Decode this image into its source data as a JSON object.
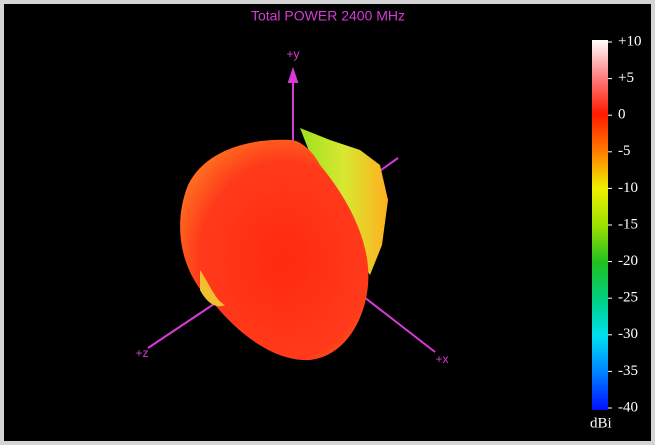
{
  "title": "Total POWER 2400  MHz",
  "axes": {
    "y": "+y",
    "x": "+x",
    "z": "+z"
  },
  "colorbar": {
    "unit": "dBi",
    "lim": [
      -40,
      10
    ],
    "ticks": [
      {
        "value": 10,
        "label": "+10"
      },
      {
        "value": 5,
        "label": "+5"
      },
      0,
      -5,
      -10,
      -15,
      -20,
      -25,
      -30,
      -35,
      -40
    ]
  }
}
